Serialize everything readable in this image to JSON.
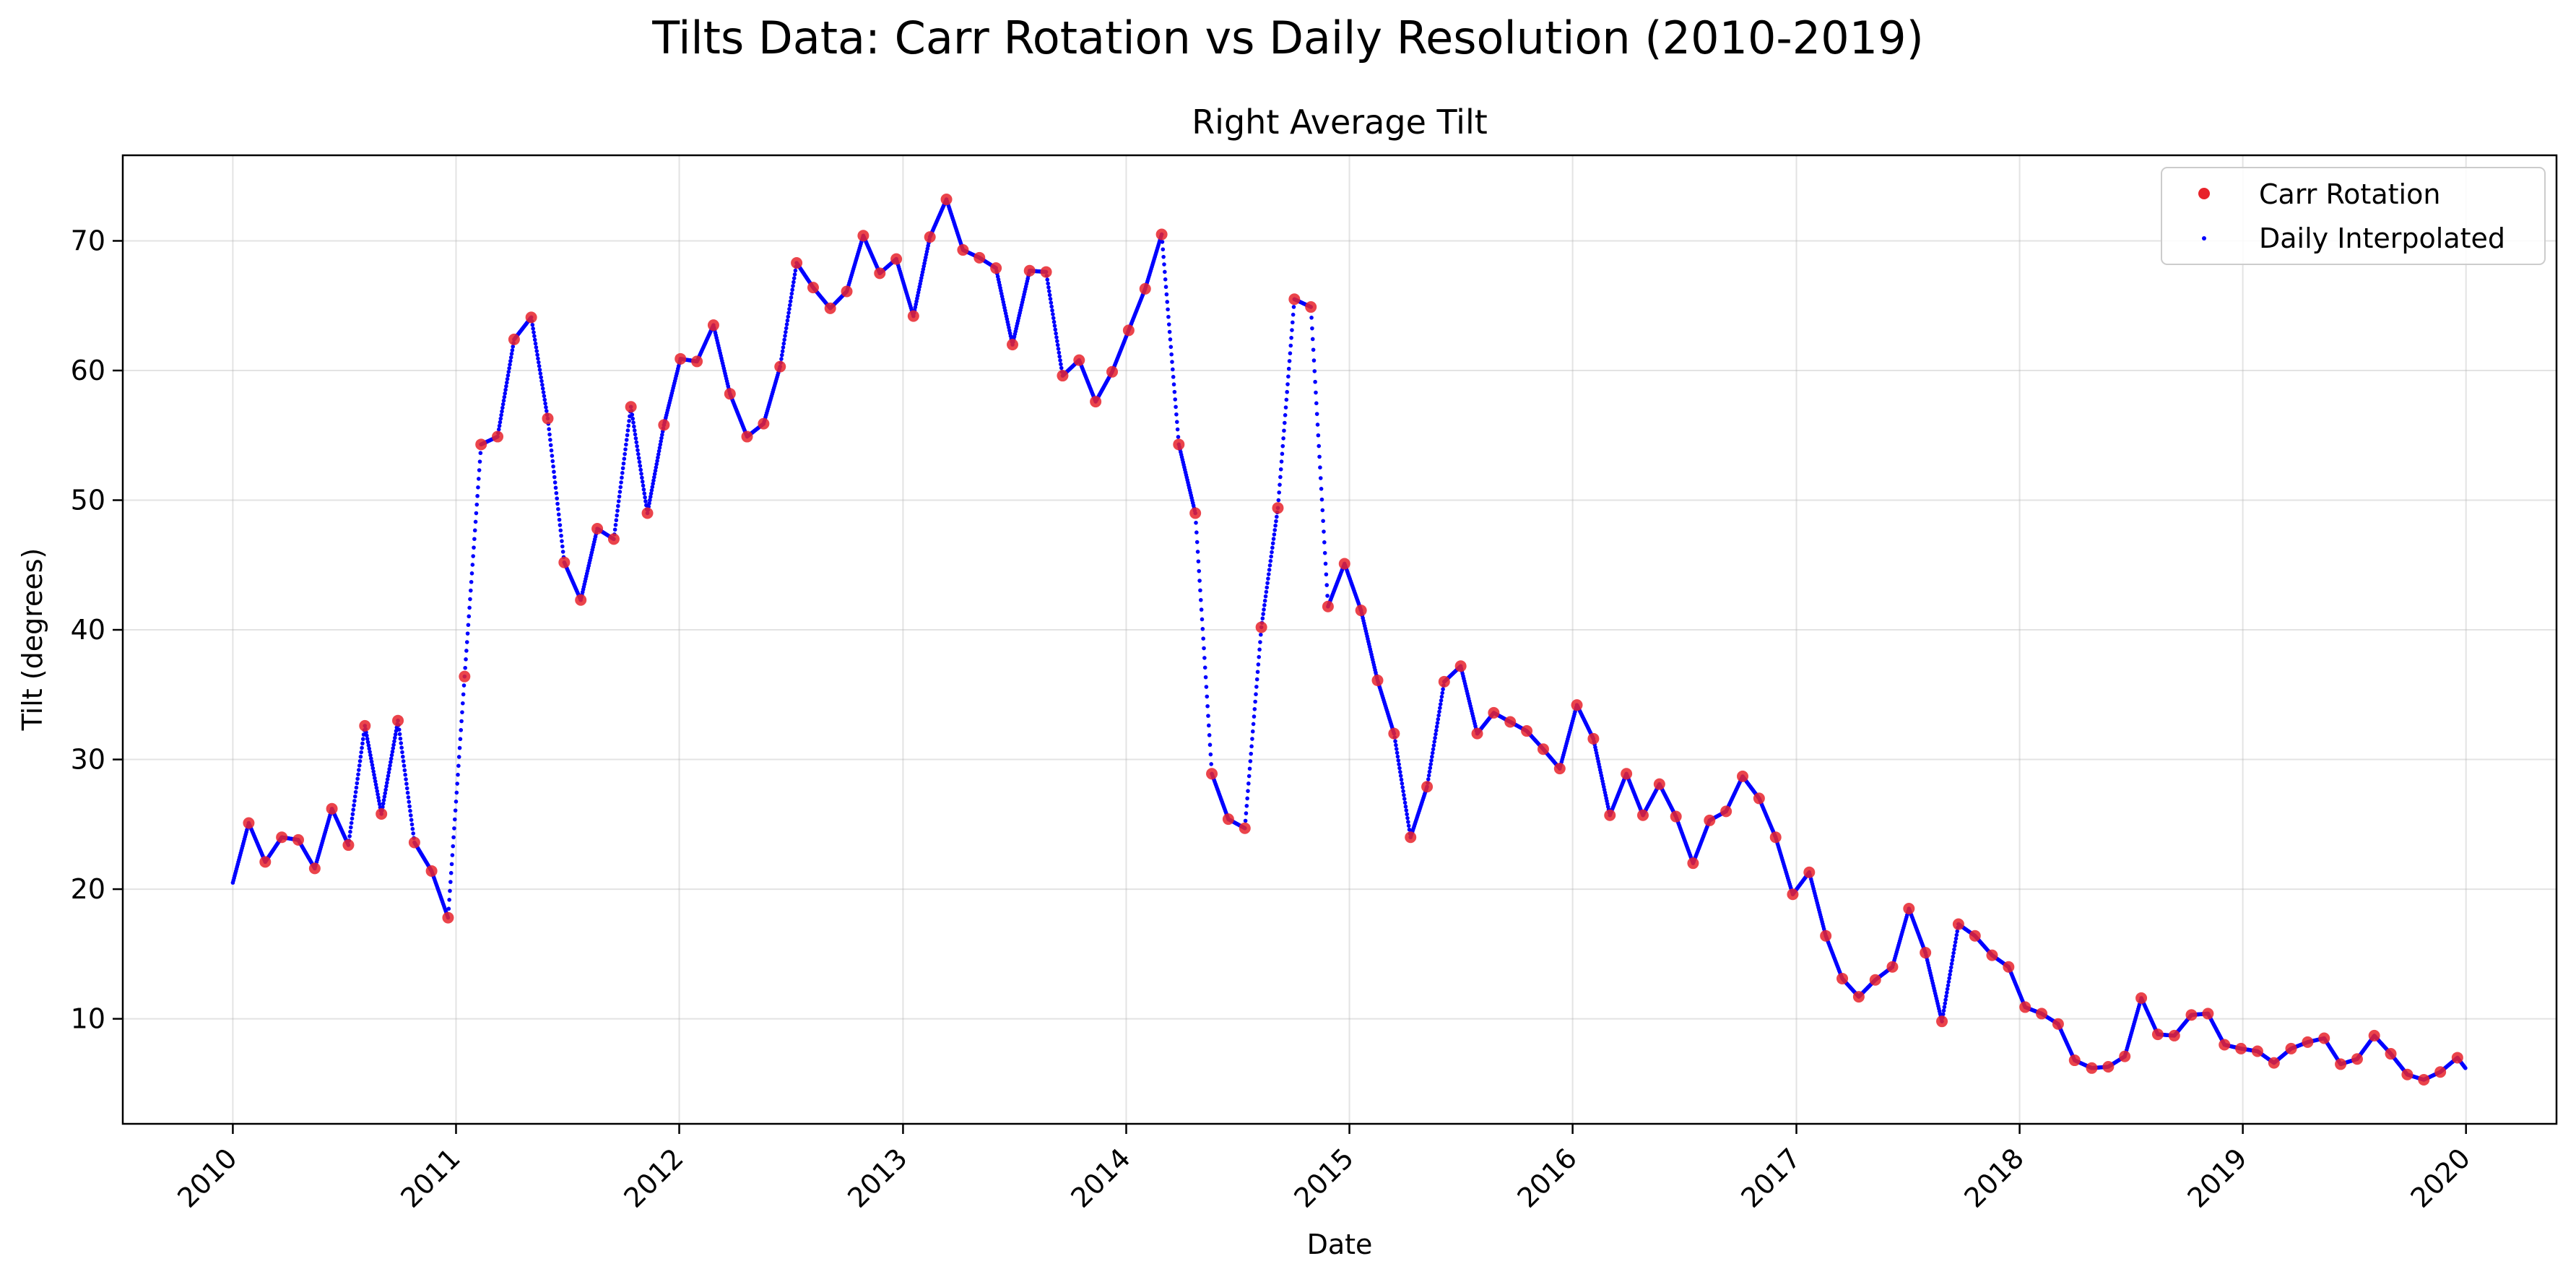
{
  "figure": {
    "suptitle": "Tilts Data: Carr Rotation vs Daily Resolution (2010-2019)"
  },
  "chart_data": {
    "type": "scatter",
    "title": "Right Average Tilt",
    "xlabel": "Date",
    "ylabel": "Tilt (degrees)",
    "xlim": [
      "2009-07-05",
      "2020-05-28"
    ],
    "ylim": [
      1.9,
      76.6
    ],
    "x_ticks": [
      "2010",
      "2011",
      "2012",
      "2013",
      "2014",
      "2015",
      "2016",
      "2017",
      "2018",
      "2019",
      "2020"
    ],
    "y_ticks": [
      10,
      20,
      30,
      40,
      50,
      60,
      70
    ],
    "grid": true,
    "legend_position": "top-right",
    "series": [
      {
        "name": "Carr Rotation",
        "marker": "circle",
        "color": "#e8232b",
        "points": [
          [
            "2010-01-27",
            25.1
          ],
          [
            "2010-02-23",
            22.1
          ],
          [
            "2010-03-22",
            24.0
          ],
          [
            "2010-04-18",
            23.8
          ],
          [
            "2010-05-15",
            21.6
          ],
          [
            "2010-06-12",
            26.2
          ],
          [
            "2010-07-09",
            23.4
          ],
          [
            "2010-08-05",
            32.6
          ],
          [
            "2010-09-01",
            25.8
          ],
          [
            "2010-09-28",
            33.0
          ],
          [
            "2010-10-25",
            23.6
          ],
          [
            "2010-11-22",
            21.4
          ],
          [
            "2010-12-19",
            17.8
          ],
          [
            "2011-01-15",
            36.4
          ],
          [
            "2011-02-11",
            54.3
          ],
          [
            "2011-03-10",
            54.9
          ],
          [
            "2011-04-06",
            62.4
          ],
          [
            "2011-05-04",
            64.1
          ],
          [
            "2011-05-31",
            56.3
          ],
          [
            "2011-06-27",
            45.2
          ],
          [
            "2011-07-24",
            42.3
          ],
          [
            "2011-08-20",
            47.8
          ],
          [
            "2011-09-16",
            47.0
          ],
          [
            "2011-10-14",
            57.2
          ],
          [
            "2011-11-10",
            49.0
          ],
          [
            "2011-12-07",
            55.8
          ],
          [
            "2012-01-03",
            60.9
          ],
          [
            "2012-01-30",
            60.7
          ],
          [
            "2012-02-26",
            63.5
          ],
          [
            "2012-03-24",
            58.2
          ],
          [
            "2012-04-21",
            54.9
          ],
          [
            "2012-05-18",
            55.9
          ],
          [
            "2012-06-14",
            60.3
          ],
          [
            "2012-07-11",
            68.3
          ],
          [
            "2012-08-07",
            66.4
          ],
          [
            "2012-09-04",
            64.8
          ],
          [
            "2012-10-01",
            66.1
          ],
          [
            "2012-10-28",
            70.4
          ],
          [
            "2012-11-24",
            67.5
          ],
          [
            "2012-12-21",
            68.6
          ],
          [
            "2013-01-18",
            64.2
          ],
          [
            "2013-02-14",
            70.3
          ],
          [
            "2013-03-13",
            73.2
          ],
          [
            "2013-04-09",
            69.3
          ],
          [
            "2013-05-06",
            68.7
          ],
          [
            "2013-06-02",
            67.9
          ],
          [
            "2013-06-29",
            62.0
          ],
          [
            "2013-07-27",
            67.7
          ],
          [
            "2013-08-23",
            67.6
          ],
          [
            "2013-09-19",
            59.6
          ],
          [
            "2013-10-16",
            60.8
          ],
          [
            "2013-11-12",
            57.6
          ],
          [
            "2013-12-09",
            59.9
          ],
          [
            "2014-01-05",
            63.1
          ],
          [
            "2014-02-01",
            66.3
          ],
          [
            "2014-02-28",
            70.5
          ],
          [
            "2014-03-28",
            54.3
          ],
          [
            "2014-04-24",
            49.0
          ],
          [
            "2014-05-21",
            28.9
          ],
          [
            "2014-06-17",
            25.4
          ],
          [
            "2014-07-14",
            24.7
          ],
          [
            "2014-08-10",
            40.2
          ],
          [
            "2014-09-06",
            49.4
          ],
          [
            "2014-10-03",
            65.5
          ],
          [
            "2014-10-30",
            64.9
          ],
          [
            "2014-11-27",
            41.8
          ],
          [
            "2014-12-24",
            45.1
          ],
          [
            "2015-01-20",
            41.5
          ],
          [
            "2015-02-16",
            36.1
          ],
          [
            "2015-03-15",
            32.0
          ],
          [
            "2015-04-11",
            24.0
          ],
          [
            "2015-05-08",
            27.9
          ],
          [
            "2015-06-05",
            36.0
          ],
          [
            "2015-07-02",
            37.2
          ],
          [
            "2015-07-29",
            32.0
          ],
          [
            "2015-08-25",
            33.6
          ],
          [
            "2015-09-21",
            32.9
          ],
          [
            "2015-10-18",
            32.2
          ],
          [
            "2015-11-14",
            30.8
          ],
          [
            "2015-12-11",
            29.3
          ],
          [
            "2016-01-08",
            34.2
          ],
          [
            "2016-02-04",
            31.6
          ],
          [
            "2016-03-02",
            25.7
          ],
          [
            "2016-03-29",
            28.9
          ],
          [
            "2016-04-25",
            25.7
          ],
          [
            "2016-05-22",
            28.1
          ],
          [
            "2016-06-18",
            25.6
          ],
          [
            "2016-07-16",
            22.0
          ],
          [
            "2016-08-12",
            25.3
          ],
          [
            "2016-09-08",
            26.0
          ],
          [
            "2016-10-05",
            28.7
          ],
          [
            "2016-11-01",
            27.0
          ],
          [
            "2016-11-28",
            24.0
          ],
          [
            "2016-12-26",
            19.6
          ],
          [
            "2017-01-22",
            21.3
          ],
          [
            "2017-02-18",
            16.4
          ],
          [
            "2017-03-17",
            13.1
          ],
          [
            "2017-04-13",
            11.7
          ],
          [
            "2017-05-10",
            13.0
          ],
          [
            "2017-06-07",
            14.0
          ],
          [
            "2017-07-04",
            18.5
          ],
          [
            "2017-07-31",
            15.1
          ],
          [
            "2017-08-27",
            9.8
          ],
          [
            "2017-09-23",
            17.3
          ],
          [
            "2017-10-20",
            16.4
          ],
          [
            "2017-11-17",
            14.9
          ],
          [
            "2017-12-14",
            14.0
          ],
          [
            "2018-01-10",
            10.9
          ],
          [
            "2018-02-06",
            10.4
          ],
          [
            "2018-03-05",
            9.6
          ],
          [
            "2018-04-01",
            6.8
          ],
          [
            "2018-04-29",
            6.2
          ],
          [
            "2018-05-26",
            6.3
          ],
          [
            "2018-06-22",
            7.1
          ],
          [
            "2018-07-19",
            11.6
          ],
          [
            "2018-08-15",
            8.8
          ],
          [
            "2018-09-11",
            8.7
          ],
          [
            "2018-10-09",
            10.3
          ],
          [
            "2018-11-05",
            10.4
          ],
          [
            "2018-12-02",
            8.0
          ],
          [
            "2018-12-29",
            7.7
          ],
          [
            "2019-01-25",
            7.5
          ],
          [
            "2019-02-21",
            6.6
          ],
          [
            "2019-03-21",
            7.7
          ],
          [
            "2019-04-17",
            8.2
          ],
          [
            "2019-05-14",
            8.5
          ],
          [
            "2019-06-10",
            6.5
          ],
          [
            "2019-07-07",
            6.9
          ],
          [
            "2019-08-04",
            8.7
          ],
          [
            "2019-08-31",
            7.3
          ],
          [
            "2019-09-27",
            5.7
          ],
          [
            "2019-10-24",
            5.3
          ],
          [
            "2019-11-20",
            5.9
          ],
          [
            "2019-12-18",
            7.0
          ]
        ]
      },
      {
        "name": "Daily Interpolated",
        "marker": "dot",
        "color": "#0000ff",
        "daily_from_points": true,
        "start": [
          "2010-01-01",
          20.5
        ],
        "end": [
          "2019-12-31",
          6.2
        ]
      }
    ]
  }
}
